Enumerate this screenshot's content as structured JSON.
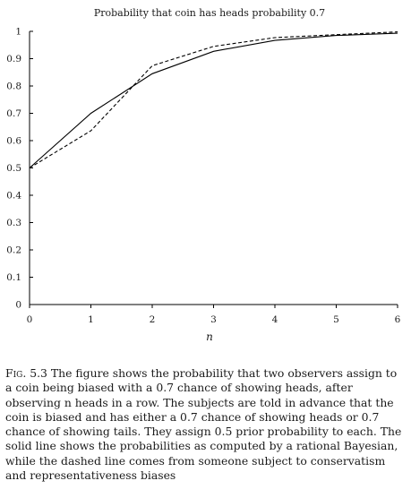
{
  "chart_data": {
    "type": "line",
    "title": "Probability that coin has heads probability 0.7",
    "xlabel": "n",
    "ylabel": "",
    "x": [
      0,
      1,
      2,
      3,
      4,
      5,
      6
    ],
    "xlim": [
      0,
      6
    ],
    "ylim": [
      0,
      1
    ],
    "x_ticks": [
      "0",
      "1",
      "2",
      "3",
      "4",
      "5",
      "6"
    ],
    "y_ticks": [
      "0",
      "0.1",
      "0.2",
      "0.3",
      "0.4",
      "0.5",
      "0.6",
      "0.7",
      "0.8",
      "0.9",
      "1"
    ],
    "grid": false,
    "series": [
      {
        "style": "solid",
        "color": "#000000",
        "values": [
          0.5,
          0.7,
          0.845,
          0.927,
          0.967,
          0.985,
          0.993
        ]
      },
      {
        "style": "dashed",
        "color": "#000000",
        "values": [
          0.5,
          0.636,
          0.874,
          0.945,
          0.977,
          0.988,
          0.998
        ]
      }
    ]
  },
  "caption": {
    "label": "Fig. 5.3",
    "text": "The figure shows the probability that two observers assign to a coin being biased with a 0.7 chance of showing heads, after observing n heads in a row. The subjects are told in advance that the coin is biased and has either a 0.7 chance of showing heads or 0.7 chance of showing tails. They assign 0.5 prior probability to each. The solid line shows the probabilities as computed by a rational Bayesian, while the dashed line comes from someone subject to conservatism and representativeness biases"
  }
}
